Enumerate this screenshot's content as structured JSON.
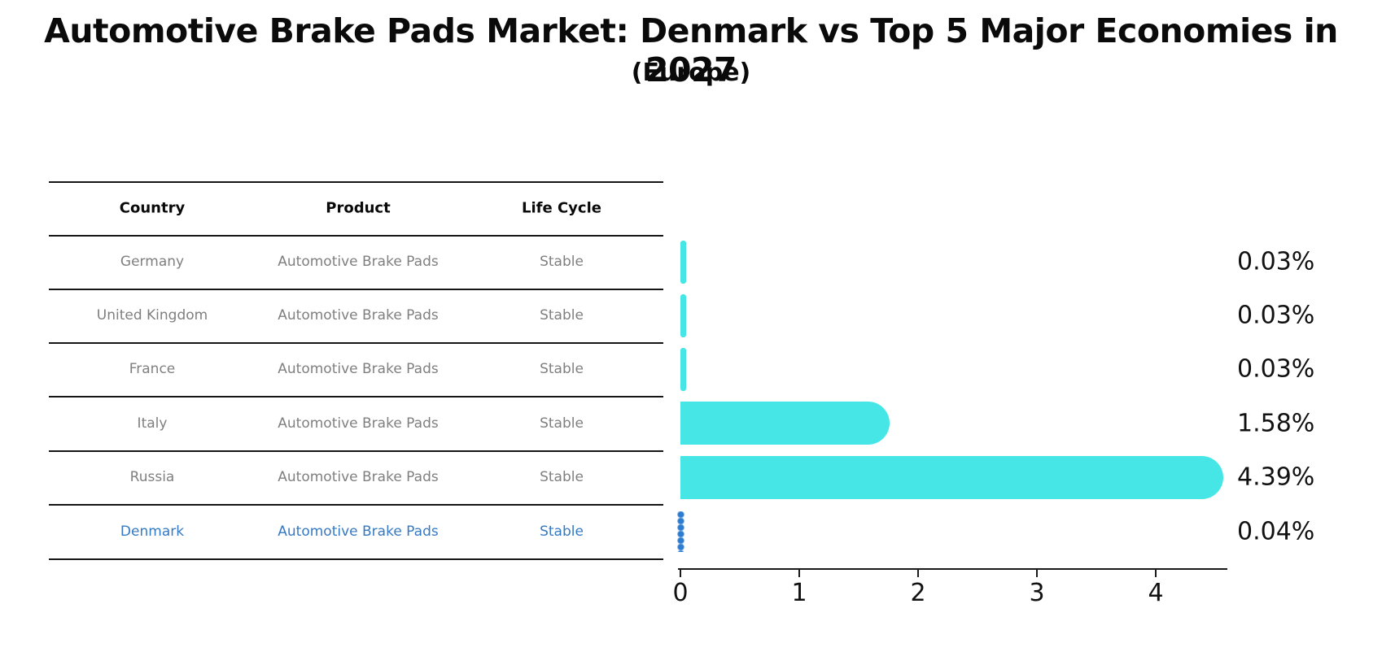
{
  "title": "Automotive Brake Pads Market: Denmark vs Top 5 Major Economies in 2027",
  "subtitle": "(Europe)",
  "table": {
    "headers": [
      "Country",
      "Product",
      "Life Cycle"
    ],
    "rows": [
      {
        "country": "Germany",
        "product": "Automotive Brake Pads",
        "life_cycle": "Stable",
        "value": 0.03,
        "value_label": "0.03%",
        "highlight": false
      },
      {
        "country": "United Kingdom",
        "product": "Automotive Brake Pads",
        "life_cycle": "Stable",
        "value": 0.03,
        "value_label": "0.03%",
        "highlight": false
      },
      {
        "country": "France",
        "product": "Automotive Brake Pads",
        "life_cycle": "Stable",
        "value": 0.03,
        "value_label": "0.03%",
        "highlight": false
      },
      {
        "country": "Italy",
        "product": "Automotive Brake Pads",
        "life_cycle": "Stable",
        "value": 1.58,
        "value_label": "1.58%",
        "highlight": false
      },
      {
        "country": "Russia",
        "product": "Automotive Brake Pads",
        "life_cycle": "Stable",
        "value": 4.39,
        "value_label": "4.39%",
        "highlight": false
      },
      {
        "country": "Denmark",
        "product": "Automotive Brake Pads",
        "life_cycle": "Stable",
        "value": 0.04,
        "value_label": "0.04%",
        "highlight": true
      }
    ]
  },
  "chart": {
    "tick_labels": [
      "0",
      "1",
      "2",
      "3",
      "4"
    ]
  },
  "colors": {
    "bar": "#46e6e6",
    "highlight_bar": "#2e7bd0",
    "highlight_text": "#3579c3",
    "row_text": "#7f7f7f",
    "axis": "#1a1a1a"
  },
  "chart_data": {
    "type": "bar",
    "orientation": "horizontal",
    "title": "Automotive Brake Pads Market: Denmark vs Top 5 Major Economies in 2027",
    "subtitle": "(Europe)",
    "categories": [
      "Germany",
      "United Kingdom",
      "France",
      "Italy",
      "Russia",
      "Denmark"
    ],
    "values": [
      0.03,
      0.03,
      0.03,
      1.58,
      4.39,
      0.04
    ],
    "value_labels": [
      "0.03%",
      "0.03%",
      "0.03%",
      "1.58%",
      "4.39%",
      "0.04%"
    ],
    "xlabel": "",
    "ylabel": "",
    "xlim": [
      0,
      4.6
    ],
    "x_ticks": [
      0,
      1,
      2,
      3,
      4
    ],
    "grid": false,
    "legend": "none",
    "bar_color": "#46e6e6",
    "highlighted_category": "Denmark",
    "highlight_color": "#2e7bd0",
    "table_columns": [
      "Country",
      "Product",
      "Life Cycle"
    ]
  }
}
